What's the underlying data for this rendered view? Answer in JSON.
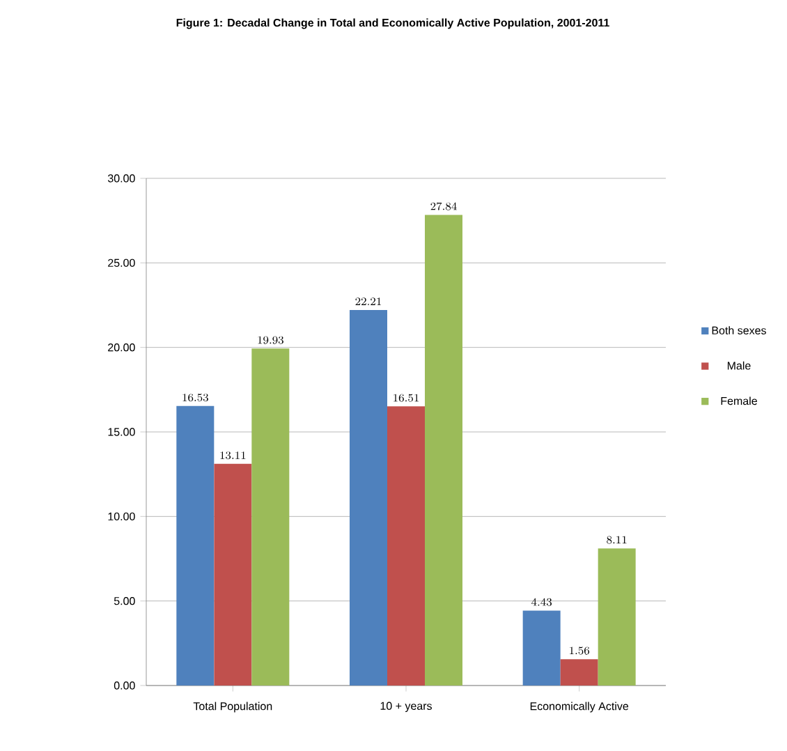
{
  "chart_data": {
    "type": "bar",
    "title": "Figure 1: Decadal Change in Total  and Economically Active Population, 2001-2011",
    "categories": [
      "Total Population",
      "10 + years",
      "Economically Active"
    ],
    "series": [
      {
        "name": "Both sexes",
        "color": "#4f81bd",
        "values": [
          16.53,
          22.21,
          4.43
        ]
      },
      {
        "name": "Male",
        "color": "#c0504d",
        "values": [
          13.11,
          16.51,
          1.56
        ]
      },
      {
        "name": "Female",
        "color": "#9bbb59",
        "values": [
          19.93,
          27.84,
          8.11
        ]
      }
    ],
    "ylim": [
      0,
      30
    ],
    "yticks": [
      {
        "value": 0,
        "label": "0.00"
      },
      {
        "value": 5,
        "label": "5.00"
      },
      {
        "value": 10,
        "label": "10.00"
      },
      {
        "value": 15,
        "label": "15.00"
      },
      {
        "value": 20,
        "label": "20.00"
      },
      {
        "value": 25,
        "label": "25.00"
      },
      {
        "value": 30,
        "label": "30.00"
      }
    ],
    "grid": "y",
    "legend": "right",
    "data_labels": true
  }
}
